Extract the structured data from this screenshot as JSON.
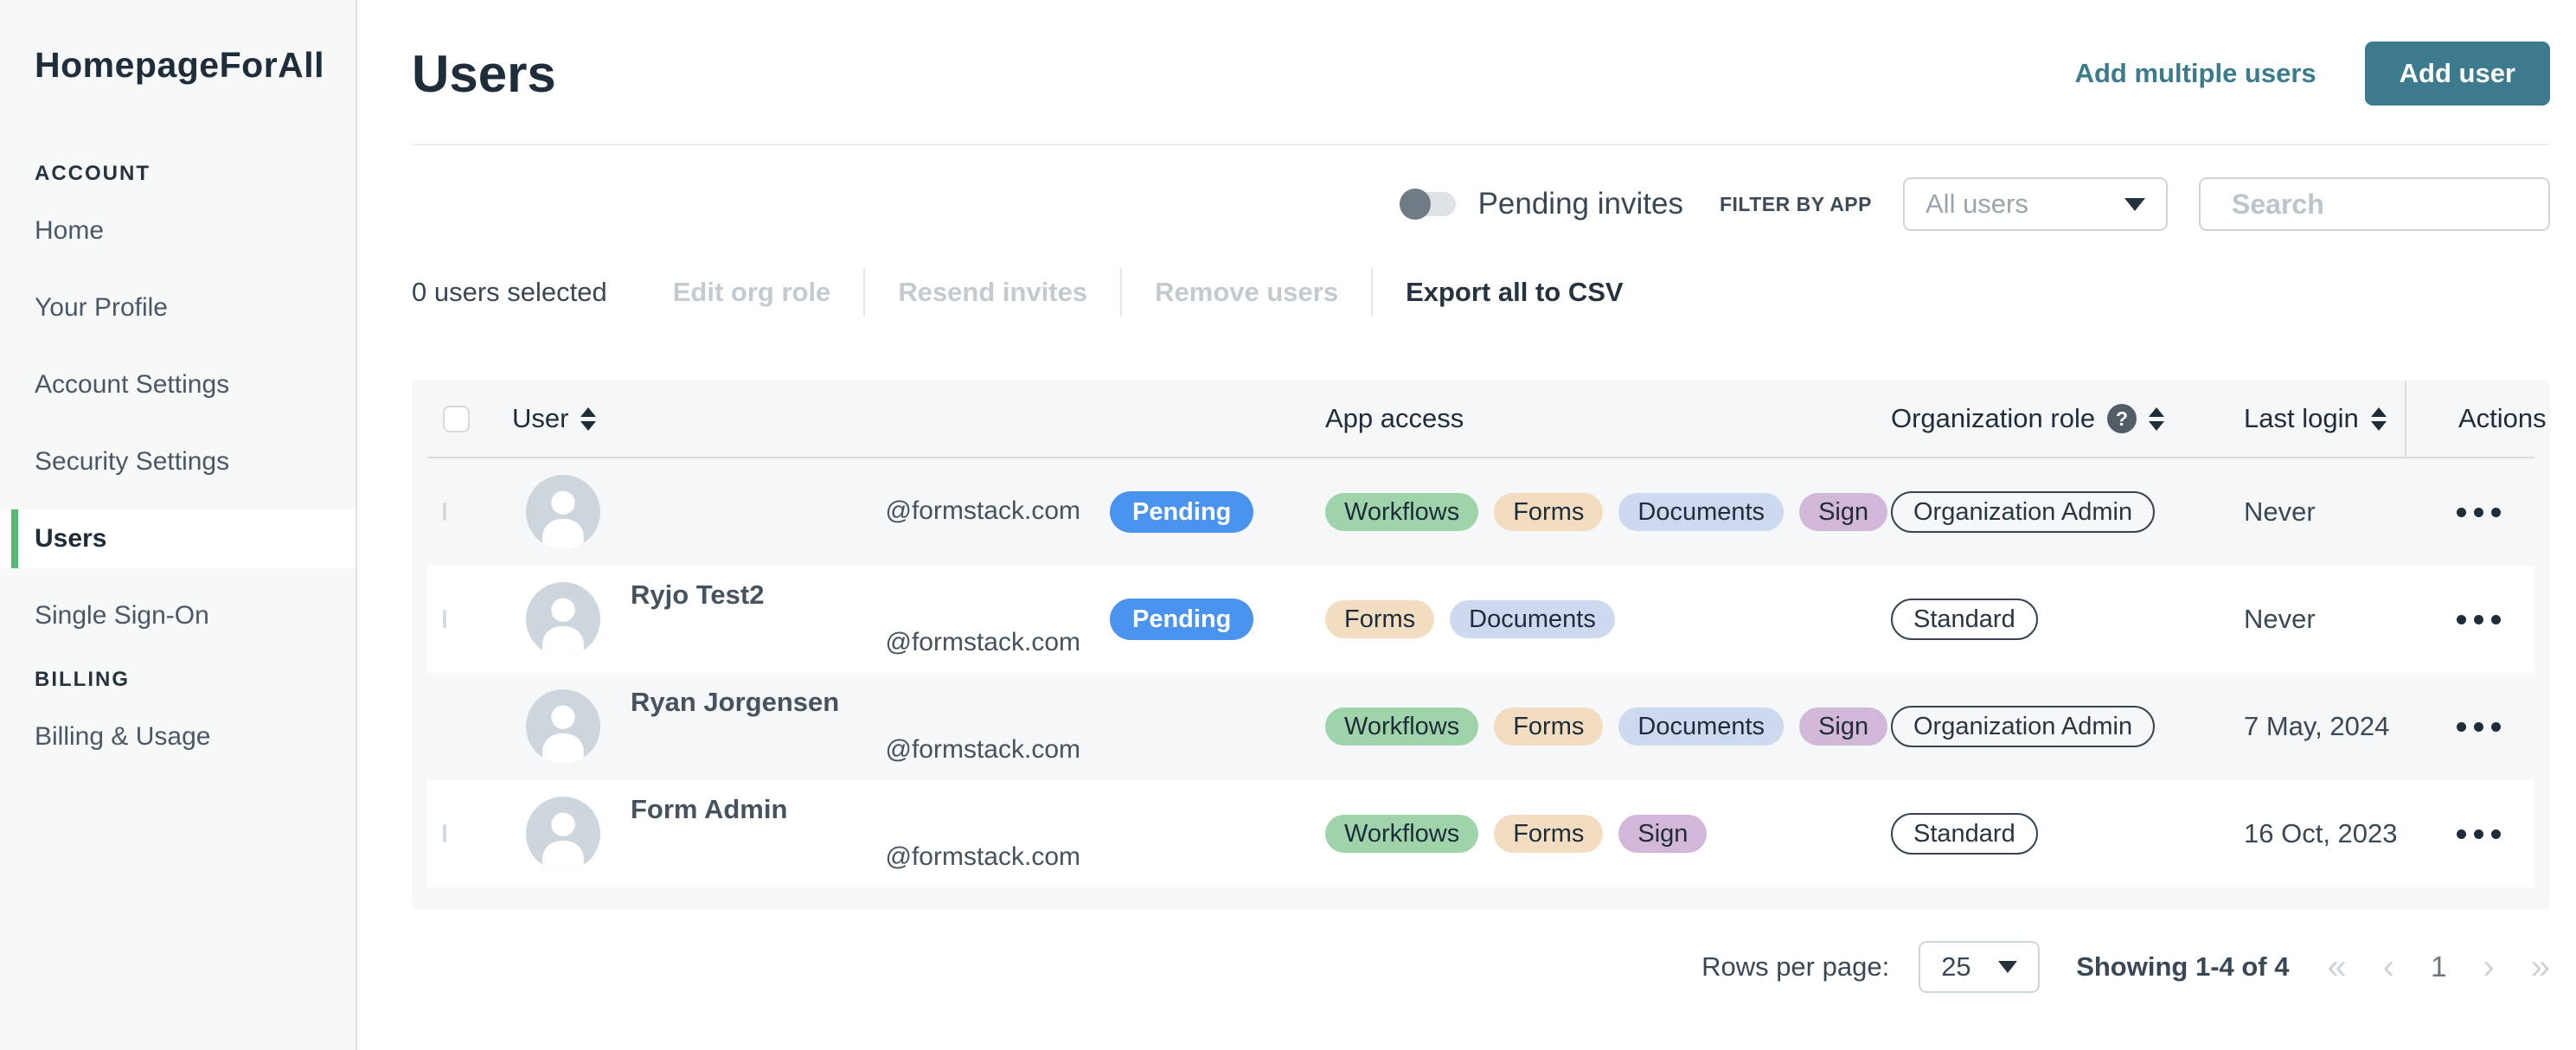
{
  "sidebar": {
    "title": "HomepageForAll",
    "sections": [
      {
        "label": "ACCOUNT",
        "items": [
          {
            "label": "Home",
            "active": false
          },
          {
            "label": "Your Profile",
            "active": false
          },
          {
            "label": "Account Settings",
            "active": false
          },
          {
            "label": "Security Settings",
            "active": false
          },
          {
            "label": "Users",
            "active": true
          },
          {
            "label": "Single Sign-On",
            "active": false
          }
        ]
      },
      {
        "label": "BILLING",
        "items": [
          {
            "label": "Billing & Usage",
            "active": false
          }
        ]
      }
    ]
  },
  "header": {
    "title": "Users",
    "add_multiple_label": "Add multiple users",
    "add_user_label": "Add user"
  },
  "toolbar": {
    "pending_toggle_label": "Pending invites",
    "pending_toggle_on": false,
    "filter_label": "FILTER BY APP",
    "filter_value": "All users",
    "search_placeholder": "Search"
  },
  "bulk_actions": {
    "selected_text": "0 users selected",
    "actions": [
      {
        "label": "Edit org role",
        "enabled": false
      },
      {
        "label": "Resend invites",
        "enabled": false
      },
      {
        "label": "Remove users",
        "enabled": false
      },
      {
        "label": "Export all to CSV",
        "enabled": true
      }
    ]
  },
  "table": {
    "columns": [
      {
        "label": "User",
        "sortable": true
      },
      {
        "label": "App access",
        "sortable": false
      },
      {
        "label": "Organization role",
        "sortable": true,
        "help": true
      },
      {
        "label": "Last login",
        "sortable": true
      },
      {
        "label": "Actions",
        "sortable": false
      }
    ],
    "pending_label": "Pending",
    "app_colors": {
      "Workflows": "#9fd4ab",
      "Forms": "#f3ddc1",
      "Documents": "#cdd9ef",
      "Sign": "#d3b7d8"
    },
    "rows": [
      {
        "name": "",
        "email": "@formstack.com",
        "pending": true,
        "checkbox": true,
        "apps": [
          "Workflows",
          "Forms",
          "Documents",
          "Sign"
        ],
        "role": "Organization Admin",
        "last_login": "Never"
      },
      {
        "name": "Ryjo Test2",
        "email": "@formstack.com",
        "pending": true,
        "checkbox": true,
        "apps": [
          "Forms",
          "Documents"
        ],
        "role": "Standard",
        "last_login": "Never"
      },
      {
        "name": "Ryan Jorgensen",
        "email": "@formstack.com",
        "pending": false,
        "checkbox": false,
        "apps": [
          "Workflows",
          "Forms",
          "Documents",
          "Sign"
        ],
        "role": "Organization Admin",
        "last_login": "7 May, 2024"
      },
      {
        "name": "Form Admin",
        "email": "@formstack.com",
        "pending": false,
        "checkbox": true,
        "apps": [
          "Workflows",
          "Forms",
          "Sign"
        ],
        "role": "Standard",
        "last_login": "16 Oct, 2023"
      }
    ]
  },
  "footer": {
    "rows_per_page_label": "Rows per page:",
    "rows_per_page_value": "25",
    "showing_text": "Showing 1-4 of 4",
    "page_number": "1",
    "first_icon": "«",
    "prev_icon": "‹",
    "next_icon": "›",
    "last_icon": "»"
  },
  "colors": {
    "accent_teal": "#3c7b8e",
    "active_green": "#57b777",
    "pending_blue": "#4a93ef",
    "table_bg": "#f5f7f8",
    "sidebar_bg": "#f7f9f9"
  }
}
